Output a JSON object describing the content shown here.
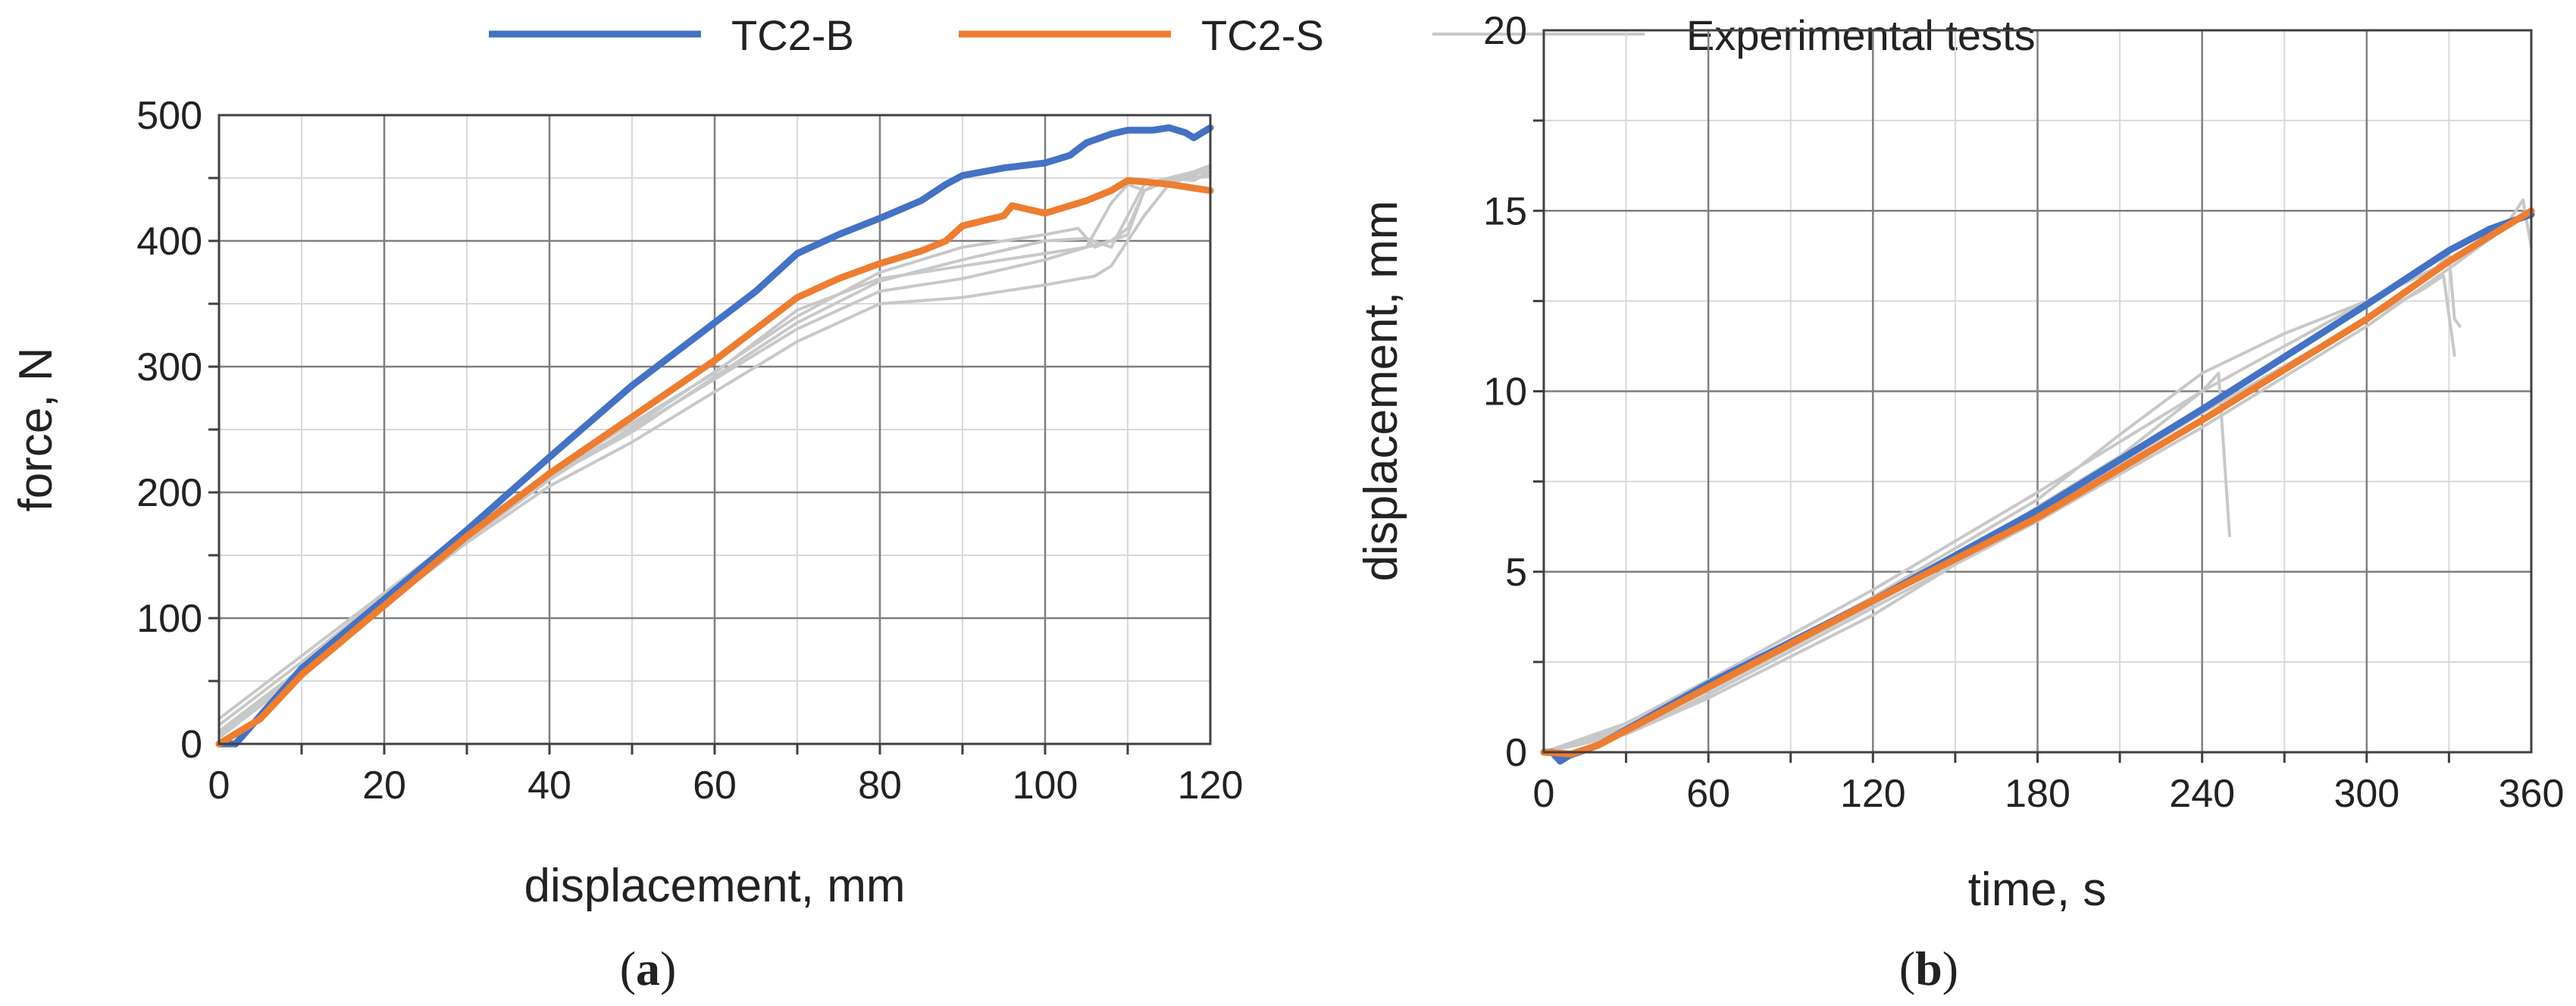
{
  "legend": [
    {
      "label": "TC2-B",
      "color": "#4472C4"
    },
    {
      "label": "TC2-S",
      "color": "#ED7D31"
    },
    {
      "label": "Experimental tests",
      "color": "#C8C8C8"
    }
  ],
  "chart_data": [
    {
      "type": "line",
      "panel": "(a)",
      "panel_prefix": "(",
      "panel_letter": "a",
      "panel_suffix": ")",
      "xlabel": "displacement, mm",
      "ylabel": "force, N",
      "xlim": [
        0,
        120
      ],
      "ylim": [
        0,
        500
      ],
      "xticks": [
        0,
        20,
        40,
        60,
        80,
        100,
        120
      ],
      "yticks": [
        0,
        100,
        200,
        300,
        400,
        500
      ],
      "grid": true,
      "series": [
        {
          "name": "TC2-B",
          "color": "#4472C4",
          "x": [
            0,
            2,
            10,
            20,
            30,
            40,
            50,
            60,
            65,
            70,
            75,
            80,
            85,
            88,
            90,
            95,
            100,
            103,
            105,
            108,
            110,
            113,
            115,
            117,
            118,
            120
          ],
          "y": [
            0,
            0,
            60,
            115,
            170,
            228,
            285,
            335,
            360,
            390,
            405,
            418,
            432,
            445,
            452,
            458,
            462,
            468,
            478,
            485,
            488,
            488,
            490,
            486,
            482,
            490
          ]
        },
        {
          "name": "TC2-S",
          "color": "#ED7D31",
          "x": [
            0,
            5,
            10,
            20,
            30,
            40,
            50,
            60,
            65,
            70,
            75,
            80,
            85,
            88,
            90,
            95,
            96,
            100,
            105,
            108,
            110,
            112,
            115,
            118,
            120
          ],
          "y": [
            0,
            20,
            55,
            110,
            165,
            215,
            260,
            305,
            330,
            355,
            370,
            382,
            392,
            400,
            412,
            420,
            428,
            422,
            432,
            440,
            448,
            447,
            445,
            442,
            440
          ]
        },
        {
          "name": "Experimental tests",
          "color": "#C8C8C8",
          "x": [
            0,
            10,
            20,
            30,
            40,
            50,
            60,
            70,
            80,
            90,
            100,
            105,
            108,
            110,
            112,
            115,
            118,
            120
          ],
          "y": [
            10,
            60,
            115,
            165,
            215,
            255,
            295,
            345,
            370,
            380,
            390,
            395,
            400,
            410,
            440,
            450,
            455,
            460
          ]
        },
        {
          "name": "Experimental tests",
          "color": "#C8C8C8",
          "x": [
            0,
            10,
            20,
            30,
            40,
            50,
            60,
            70,
            80,
            90,
            100,
            105,
            108,
            110,
            112,
            115,
            118,
            120
          ],
          "y": [
            20,
            70,
            120,
            170,
            215,
            250,
            290,
            330,
            360,
            370,
            385,
            395,
            430,
            445,
            440,
            450,
            448,
            455
          ]
        },
        {
          "name": "Experimental tests",
          "color": "#C8C8C8",
          "x": [
            0,
            10,
            20,
            30,
            40,
            50,
            60,
            70,
            80,
            90,
            100,
            106,
            108,
            110,
            112,
            115,
            118,
            120
          ],
          "y": [
            5,
            55,
            110,
            160,
            205,
            240,
            280,
            320,
            350,
            355,
            365,
            372,
            380,
            400,
            420,
            445,
            452,
            458
          ]
        },
        {
          "name": "Experimental tests",
          "color": "#C8C8C8",
          "x": [
            0,
            10,
            20,
            30,
            40,
            50,
            60,
            70,
            80,
            90,
            100,
            105,
            108,
            110,
            112,
            115,
            120
          ],
          "y": [
            15,
            65,
            118,
            168,
            212,
            248,
            292,
            335,
            368,
            385,
            400,
            402,
            395,
            420,
            445,
            450,
            455
          ]
        },
        {
          "name": "Experimental tests",
          "color": "#C8C8C8",
          "x": [
            0,
            10,
            20,
            30,
            40,
            50,
            60,
            70,
            80,
            90,
            100,
            104,
            106,
            110,
            112,
            115,
            120
          ],
          "y": [
            8,
            58,
            112,
            162,
            210,
            252,
            296,
            340,
            375,
            395,
            405,
            410,
            395,
            405,
            440,
            448,
            452
          ]
        }
      ]
    },
    {
      "type": "line",
      "panel": "(b)",
      "panel_prefix": "(",
      "panel_letter": "b",
      "panel_suffix": ")",
      "xlabel": "time, s",
      "ylabel": "displacement, mm",
      "xlim": [
        0,
        360
      ],
      "ylim": [
        0,
        20
      ],
      "xticks": [
        0,
        60,
        120,
        180,
        240,
        300,
        360
      ],
      "yticks": [
        0,
        5,
        10,
        15,
        20
      ],
      "grid": true,
      "series": [
        {
          "name": "TC2-B",
          "color": "#4472C4",
          "x": [
            0,
            3,
            6,
            9,
            20,
            60,
            120,
            180,
            240,
            300,
            330,
            345,
            360
          ],
          "y": [
            0,
            0,
            -0.25,
            -0.1,
            0.2,
            1.9,
            4.2,
            6.7,
            9.5,
            12.4,
            13.9,
            14.5,
            14.9
          ]
        },
        {
          "name": "TC2-S",
          "color": "#ED7D31",
          "x": [
            0,
            10,
            20,
            60,
            120,
            180,
            240,
            300,
            330,
            345,
            360
          ],
          "y": [
            0,
            -0.05,
            0.2,
            1.8,
            4.2,
            6.5,
            9.2,
            12.0,
            13.6,
            14.3,
            15.0
          ]
        },
        {
          "name": "Experimental tests",
          "color": "#C8C8C8",
          "x": [
            0,
            30,
            60,
            120,
            150,
            180,
            210,
            240,
            246,
            250
          ],
          "y": [
            0,
            0.5,
            1.5,
            3.8,
            5.2,
            6.8,
            8.2,
            10.0,
            10.5,
            6.0
          ]
        },
        {
          "name": "Experimental tests",
          "color": "#C8C8C8",
          "x": [
            0,
            30,
            60,
            120,
            180,
            240,
            300,
            325,
            330,
            332,
            334
          ],
          "y": [
            0,
            0.8,
            2.0,
            4.5,
            7.2,
            10.0,
            12.5,
            13.4,
            13.8,
            12.0,
            11.8
          ]
        },
        {
          "name": "Experimental tests",
          "color": "#C8C8C8",
          "x": [
            0,
            30,
            60,
            120,
            180,
            240,
            300,
            320,
            328,
            332
          ],
          "y": [
            0,
            0.6,
            1.7,
            4.1,
            6.6,
            9.4,
            12.0,
            12.8,
            13.2,
            11.0
          ]
        },
        {
          "name": "Experimental tests",
          "color": "#C8C8C8",
          "x": [
            0,
            30,
            60,
            120,
            180,
            240,
            300,
            330,
            350,
            357,
            360
          ],
          "y": [
            0,
            0.5,
            1.6,
            4.0,
            6.4,
            9.0,
            11.8,
            13.4,
            14.5,
            15.3,
            14.0
          ]
        },
        {
          "name": "Experimental tests",
          "color": "#C8C8C8",
          "x": [
            0,
            30,
            60,
            120,
            180,
            210,
            240,
            270,
            300,
            330
          ],
          "y": [
            0,
            0.7,
            1.8,
            4.3,
            7.0,
            8.8,
            10.5,
            11.6,
            12.5,
            13.6
          ]
        }
      ]
    }
  ]
}
